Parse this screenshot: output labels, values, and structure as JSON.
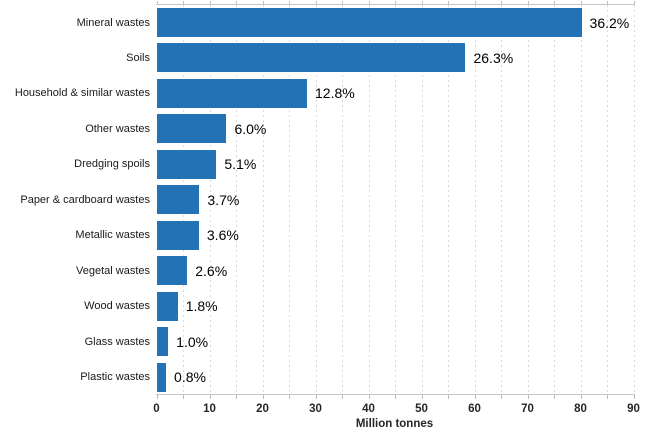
{
  "chart_data": {
    "type": "bar",
    "orientation": "horizontal",
    "title": "",
    "xlabel": "Million tonnes",
    "ylabel": "",
    "xlim": [
      0,
      90
    ],
    "x_major_ticks": [
      0,
      10,
      20,
      30,
      40,
      50,
      60,
      70,
      80,
      90
    ],
    "x_minor_tick_step": 5,
    "grid": "vertical-dashed-every-5",
    "legend": "none",
    "bar_color": "#2272b5",
    "categories": [
      "Mineral wastes",
      "Soils",
      "Household & similar wastes",
      "Other wastes",
      "Dredging spoils",
      "Paper & cardboard wastes",
      "Metallic wastes",
      "Vegetal wastes",
      "Wood wastes",
      "Glass wastes",
      "Plastic wastes"
    ],
    "values_million_tonnes": [
      80.2,
      58.3,
      28.4,
      13.2,
      11.3,
      8.1,
      8.0,
      5.8,
      4.0,
      2.2,
      1.8
    ],
    "percent_labels": [
      "36.2%",
      "26.3%",
      "12.8%",
      "6.0%",
      "5.1%",
      "3.7%",
      "3.6%",
      "2.6%",
      "1.8%",
      "1.0%",
      "0.8%"
    ]
  },
  "colors": {
    "bar": "#2272b5",
    "gridline": "#d9d9d9",
    "axis_line": "#c6c6c6",
    "tick": "#bdbdbd",
    "category_text": "#1a1a1a",
    "value_text": "#000000",
    "tick_text": "#262626",
    "background": "#ffffff"
  }
}
